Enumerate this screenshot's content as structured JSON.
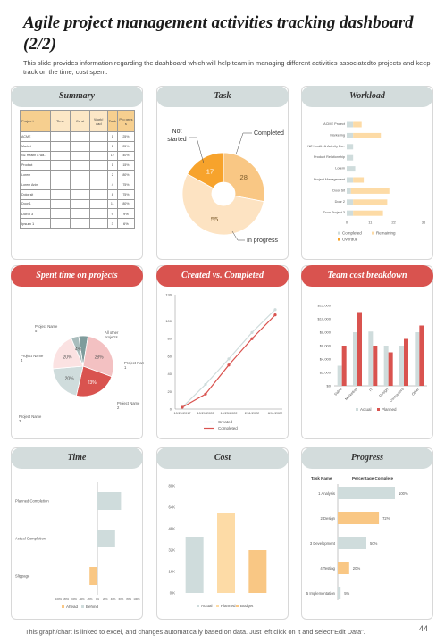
{
  "header": {
    "title": "Agile project management activities tracking dashboard (2/2)",
    "subtitle": "This slide provides information regarding the dashboard which will help team in managing different activities associatedto projects and keep track on the time, cost spent."
  },
  "panels": {
    "summary": "Summary",
    "task": "Task",
    "workload": "Workload",
    "spent": "Spent time on projects",
    "created": "Created vs. Completed",
    "team_cost": "Team cost breakdown",
    "time": "Time",
    "cost": "Cost",
    "progress": "Progress"
  },
  "summary_table": {
    "headers": [
      "Projec t",
      "Time",
      "Co st",
      "Work! oad",
      "Task",
      "Pro gres s"
    ],
    "rows": [
      [
        "ACME",
        "",
        "",
        "",
        "1",
        "25%"
      ],
      [
        "Market",
        "",
        "",
        "",
        "1",
        "25%"
      ],
      [
        "NZ Health & wa..",
        "",
        "",
        "",
        "12",
        "40%"
      ],
      [
        "Product",
        "",
        "",
        "",
        "1",
        "15%"
      ],
      [
        "Lorem",
        "",
        "",
        "",
        "2",
        "80%"
      ],
      [
        "Lorem Anim",
        "",
        "",
        "",
        "4",
        "75%"
      ],
      [
        "Dolor sit",
        "",
        "",
        "",
        "8",
        "75%"
      ],
      [
        "Door 1",
        "",
        "",
        "",
        "11",
        "80%"
      ],
      [
        "Dorot 3",
        "",
        "",
        "",
        "9",
        "9%"
      ],
      [
        "Ipsum 1",
        "",
        "",
        "",
        "3",
        "6%"
      ]
    ]
  },
  "footer": {
    "text": "This graph/chart is linked to excel, and changes automatically based on data. Just left click on it and select\"Edit Data\".",
    "page": "44"
  },
  "chart_data": [
    {
      "id": "task",
      "type": "pie",
      "categories": [
        "Completed",
        "In progress",
        "Not started"
      ],
      "values": [
        28,
        55,
        17
      ],
      "colors": [
        "#f9c784",
        "#fde3c2",
        "#f7a32c"
      ]
    },
    {
      "id": "workload",
      "type": "bar",
      "orientation": "horizontal",
      "stacked": true,
      "categories": [
        "ACME Project",
        "Marketing",
        "NZ Health & Activity Do..",
        "Product Relationship",
        "Lorem",
        "Project Management",
        "Door Sit",
        "Door 2",
        "Door Project 3"
      ],
      "series": [
        {
          "name": "Completed",
          "values": [
            3,
            3,
            3,
            3,
            4,
            3,
            2,
            3,
            3
          ],
          "color": "#cfdcdc"
        },
        {
          "name": "Remaining",
          "values": [
            4,
            13,
            0,
            0,
            0,
            5,
            18,
            16,
            14
          ],
          "color": "#fddba6"
        },
        {
          "name": "Overdue",
          "values": [
            0,
            0,
            0,
            0,
            0,
            0,
            0,
            0,
            0
          ],
          "color": "#f7a32c"
        }
      ],
      "xlim": [
        0,
        36
      ],
      "ticks": [
        "0",
        "11",
        "22",
        "36"
      ]
    },
    {
      "id": "spent",
      "type": "pie",
      "categories": [
        "Project Name 1",
        "Project Name 2",
        "Project Name 3",
        "Project Name 4",
        "Project Name 5",
        "All other projects"
      ],
      "values": [
        28,
        23,
        20,
        20,
        4,
        5
      ],
      "labels": [
        "28%",
        "23%",
        "20%",
        "20%",
        "4%",
        ""
      ],
      "colors": [
        "#f3c1c2",
        "#d9534f",
        "#cfdcdc",
        "#fbe2e2",
        "#a9bcbc",
        "#7f9c9c"
      ]
    },
    {
      "id": "created",
      "type": "line",
      "x": [
        "10/21/2017",
        "10/21/2022",
        "10/25/2022",
        "2/11/2022",
        "8/11/2022"
      ],
      "series": [
        {
          "name": "Created",
          "values": [
            2,
            28,
            57,
            87,
            113
          ],
          "color": "#cfdcdc"
        },
        {
          "name": "Completed",
          "values": [
            2,
            17,
            50,
            80,
            107
          ],
          "color": "#d9534f"
        }
      ],
      "ylim": [
        0,
        130
      ],
      "yticks": [
        "0",
        "20",
        "40",
        "60",
        "80",
        "100",
        "130"
      ]
    },
    {
      "id": "team_cost",
      "type": "bar",
      "categories": [
        "Sales",
        "Marketing",
        "IT",
        "Design",
        "Contractors",
        "Other"
      ],
      "series": [
        {
          "name": "Actual",
          "values": [
            3000,
            8000,
            8100,
            6000,
            6000,
            8000
          ],
          "color": "#cfdcdc"
        },
        {
          "name": "Planned",
          "values": [
            6000,
            11000,
            6000,
            5000,
            7000,
            9000
          ],
          "color": "#d9534f"
        }
      ],
      "ylim": [
        0,
        12000
      ],
      "yticks": [
        "$0",
        "$2,000",
        "$4,000",
        "$6,000",
        "$8,000",
        "$10,000",
        "$12,000"
      ]
    },
    {
      "id": "time",
      "type": "bar",
      "orientation": "horizontal",
      "categories": [
        "Planned Completion",
        "Actual Completion",
        "Slippage"
      ],
      "series": [
        {
          "name": "Ahead",
          "values": [
            0,
            0,
            -20
          ],
          "color": "#f9c784"
        },
        {
          "name": "Behind",
          "values": [
            60,
            45,
            0
          ],
          "color": "#cfdcdc"
        }
      ],
      "xlim": [
        -100,
        100
      ],
      "ticks": [
        "-100%",
        "-80%",
        "-60%",
        "-40%",
        "-20%",
        "0%",
        "20%",
        "40%",
        "60%",
        "80%",
        "100%"
      ]
    },
    {
      "id": "cost",
      "type": "bar",
      "categories": [
        "Actual",
        "Planned",
        "Budget"
      ],
      "values": [
        42,
        60,
        32
      ],
      "colors": [
        "#cfdcdc",
        "#fddba6",
        "#f9c784"
      ],
      "ylim": [
        0,
        80
      ],
      "yticks": [
        "0 K",
        "16K",
        "32K",
        "48K",
        "64K",
        "80K"
      ]
    },
    {
      "id": "progress",
      "type": "bar",
      "orientation": "horizontal",
      "col_headers": [
        "Task Name",
        "Percentage Complete"
      ],
      "categories": [
        "1 Analysis",
        "2 Design",
        "3 Development",
        "4 Testing",
        "5 Implementation"
      ],
      "values": [
        100,
        72,
        50,
        20,
        5
      ],
      "labels": [
        "100%",
        "72%",
        "50%",
        "20%",
        "5%"
      ],
      "colors": [
        "#cfdcdc",
        "#f9c784",
        "#cfdcdc",
        "#f9c784",
        "#cfdcdc"
      ],
      "xlim": [
        0,
        100
      ]
    }
  ]
}
